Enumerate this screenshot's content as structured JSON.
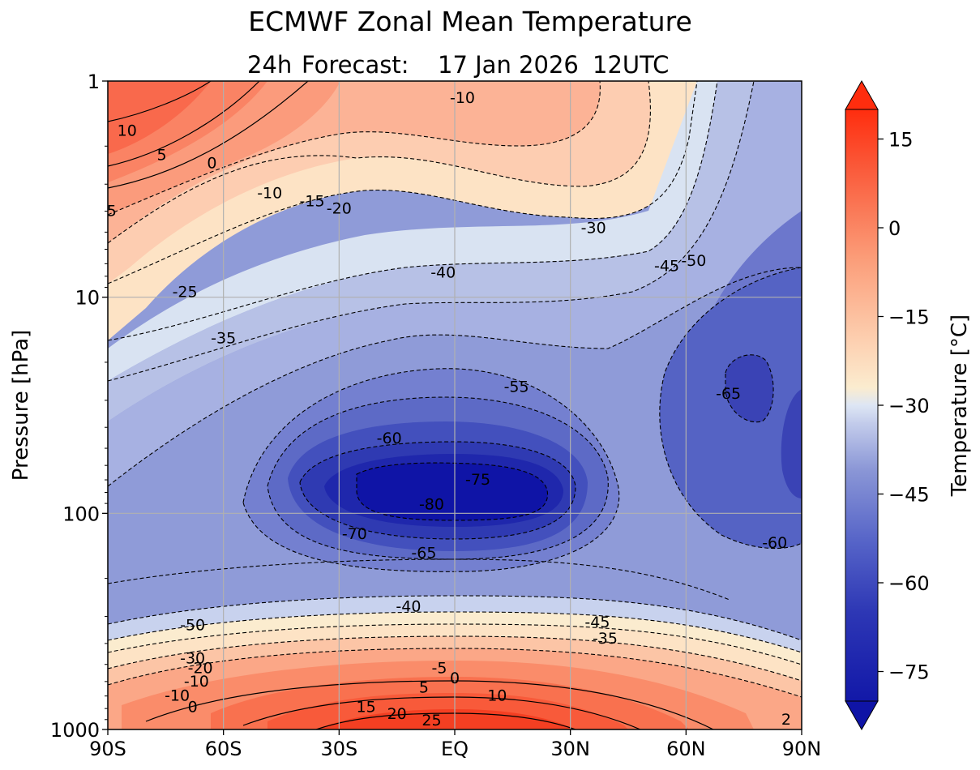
{
  "chart_data": {
    "type": "contourf",
    "title": "ECMWF Zonal Mean Temperature",
    "subtitle": {
      "lead": "24h",
      "forecast": "Forecast:",
      "date": "17 Jan 2026",
      "time": "12UTC"
    },
    "xlabel": "",
    "ylabel": "Pressure [hPa]",
    "colorbar_label": "Temperature [°C]",
    "x_ticks": [
      "90S",
      "60S",
      "30S",
      "EQ",
      "30N",
      "60N",
      "90N"
    ],
    "x_range": [
      -90,
      90
    ],
    "y_ticks": [
      "1",
      "10",
      "100",
      "1000"
    ],
    "y_range_hpa": [
      1,
      1000
    ],
    "y_scale": "log",
    "grid": true,
    "colorbar_ticks": [
      "15",
      "0",
      "−15",
      "−30",
      "−45",
      "−60",
      "−75"
    ],
    "colorbar_range": [
      -80,
      20
    ],
    "colorbar_extend": "both",
    "level_step_c": 5,
    "palette": {
      "warm_max": "#ff2d0e",
      "warm_mid": "#fb8c64",
      "warm_light": "#fde3c5",
      "pale": "#fbeccf",
      "cool_light": "#d9e3f2",
      "cool_mid": "#8f9bd8",
      "cool_dark": "#2a33b0",
      "cool_min": "#0f14a6"
    },
    "contour_labels": [
      {
        "value": "10",
        "lat": -85,
        "p": 1.7
      },
      {
        "value": "5",
        "lat": -76,
        "p": 2.2
      },
      {
        "value": "0",
        "lat": -63,
        "p": 2.4
      },
      {
        "value": "5",
        "lat": -89,
        "p": 4.0
      },
      {
        "value": "-10",
        "lat": -48,
        "p": 3.3
      },
      {
        "value": "-15",
        "lat": -37,
        "p": 3.6
      },
      {
        "value": "-20",
        "lat": -30,
        "p": 3.9
      },
      {
        "value": "-10",
        "lat": 2,
        "p": 1.2
      },
      {
        "value": "-30",
        "lat": 36,
        "p": 4.8
      },
      {
        "value": "-45",
        "lat": 55,
        "p": 7.2
      },
      {
        "value": "-50",
        "lat": 62,
        "p": 6.8
      },
      {
        "value": "-25",
        "lat": -70,
        "p": 9.5
      },
      {
        "value": "-40",
        "lat": -3,
        "p": 7.7
      },
      {
        "value": "-35",
        "lat": -60,
        "p": 15.5
      },
      {
        "value": "-55",
        "lat": 16,
        "p": 26
      },
      {
        "value": "-65",
        "lat": 71,
        "p": 28
      },
      {
        "value": "-60",
        "lat": -17,
        "p": 45
      },
      {
        "value": "-75",
        "lat": 6,
        "p": 70
      },
      {
        "value": "-80",
        "lat": -6,
        "p": 91
      },
      {
        "value": "-70",
        "lat": -26,
        "p": 125
      },
      {
        "value": "-65",
        "lat": -8,
        "p": 153
      },
      {
        "value": "-60",
        "lat": 83,
        "p": 137
      },
      {
        "value": "-40",
        "lat": -12,
        "p": 270
      },
      {
        "value": "-50",
        "lat": -68,
        "p": 330
      },
      {
        "value": "-45",
        "lat": 37,
        "p": 320
      },
      {
        "value": "-35",
        "lat": 39,
        "p": 380
      },
      {
        "value": "-5",
        "lat": -4,
        "p": 520
      },
      {
        "value": "0",
        "lat": 0,
        "p": 580
      },
      {
        "value": "5",
        "lat": -8,
        "p": 640
      },
      {
        "value": "10",
        "lat": 11,
        "p": 700
      },
      {
        "value": "15",
        "lat": -23,
        "p": 790
      },
      {
        "value": "20",
        "lat": -15,
        "p": 850
      },
      {
        "value": "25",
        "lat": -6,
        "p": 910
      },
      {
        "value": "-30",
        "lat": -68,
        "p": 470
      },
      {
        "value": "-20",
        "lat": -66,
        "p": 520
      },
      {
        "value": "-10",
        "lat": -67,
        "p": 600
      },
      {
        "value": "-10",
        "lat": -72,
        "p": 700
      },
      {
        "value": "0",
        "lat": -68,
        "p": 790
      },
      {
        "value": "2",
        "lat": 86,
        "p": 900
      }
    ]
  }
}
